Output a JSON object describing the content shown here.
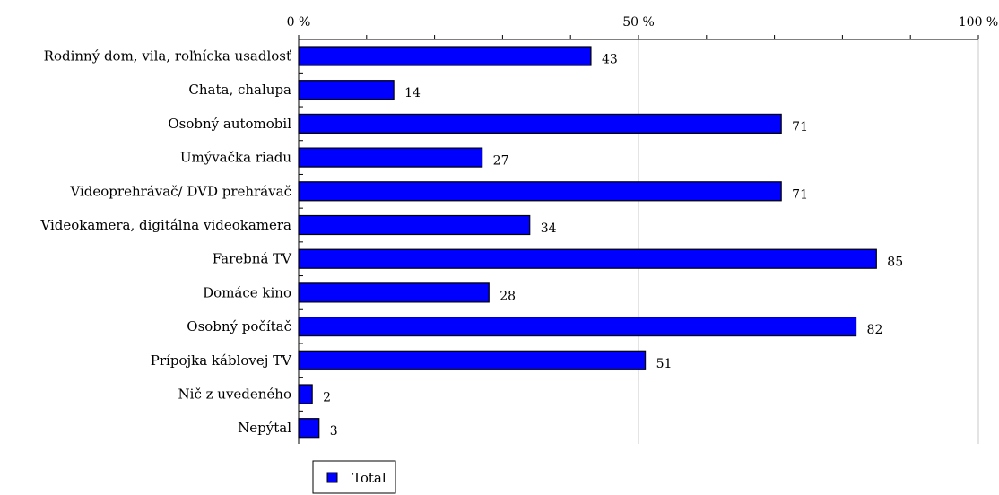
{
  "chart_data": {
    "type": "bar",
    "orientation": "horizontal",
    "title": "",
    "xlabel": "",
    "ylabel": "",
    "xlim": [
      0,
      100
    ],
    "x_ticks": [
      {
        "value": 0,
        "label": "0 %"
      },
      {
        "value": 50,
        "label": "50 %"
      },
      {
        "value": 100,
        "label": "100 %"
      }
    ],
    "x_axis_position": "top",
    "grid": true,
    "legend_position": "bottom-left",
    "categories": [
      "Rodinný dom, vila, roľnícka usadlosť",
      "Chata, chalupa",
      "Osobný automobil",
      "Umývačka riadu",
      "Videoprehrávač/ DVD prehrávač",
      "Videokamera, digitálna videokamera",
      "Farebná TV",
      "Domáce kino",
      "Osobný počítač",
      "Prípojka káblovej TV",
      "Nič z uvedeného",
      "Nepýtal"
    ],
    "series": [
      {
        "name": "Total",
        "color": "#0000ff",
        "values": [
          43,
          14,
          71,
          27,
          71,
          34,
          85,
          28,
          82,
          51,
          2,
          3
        ],
        "value_labels": [
          "43",
          "14",
          "71",
          "27",
          "71",
          "34",
          "85",
          "28",
          "82",
          "51",
          "2",
          "3"
        ]
      }
    ]
  }
}
